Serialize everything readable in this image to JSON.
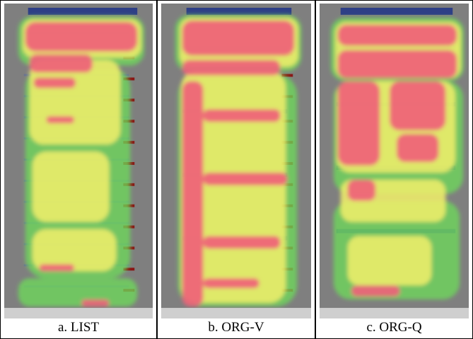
{
  "panels": [
    {
      "caption": "a. LIST"
    },
    {
      "caption": "b. ORG-V"
    },
    {
      "caption": "c. ORG-Q"
    }
  ],
  "colors": {
    "background": "#7f7f7f",
    "header_bar": "#2e3f86",
    "hot": "#f0607a",
    "warm": "#f2f06a",
    "cool": "#6edc58",
    "button": "#8a1414"
  }
}
